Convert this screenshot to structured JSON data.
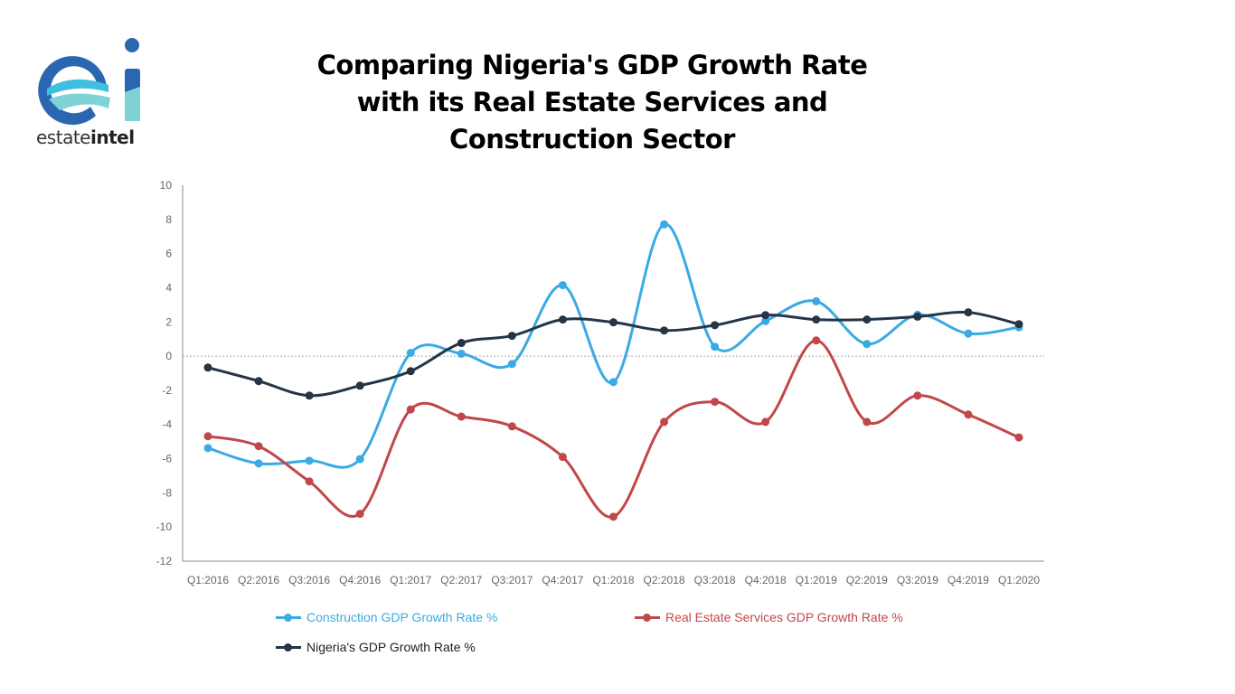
{
  "brand": {
    "logo_text": "estateintel",
    "logo_text_light": "estate",
    "logo_text_bold": "intel",
    "colors": [
      "#2b67b1",
      "#3fbfe0",
      "#7fd3d5"
    ]
  },
  "title_lines": [
    "Comparing Nigeria's GDP Growth Rate",
    "with its Real Estate Services and",
    "Construction Sector"
  ],
  "chart_data": {
    "type": "line",
    "title": "Comparing Nigeria's GDP Growth Rate with its Real Estate Services and Construction Sector",
    "xlabel": "",
    "ylabel": "",
    "categories": [
      "Q1:2016",
      "Q2:2016",
      "Q3:2016",
      "Q4:2016",
      "Q1:2017",
      "Q2:2017",
      "Q3:2017",
      "Q4:2017",
      "Q1:2018",
      "Q2:2018",
      "Q3:2018",
      "Q4:2018",
      "Q1:2019",
      "Q2:2019",
      "Q3:2019",
      "Q4:2019",
      "Q1:2020"
    ],
    "ylim": [
      -12,
      10
    ],
    "yticks": [
      10,
      8,
      6,
      4,
      2,
      0,
      -2,
      -4,
      -6,
      -8,
      -10,
      -12
    ],
    "grid": false,
    "zero_line": "dotted",
    "smooth": true,
    "legend_position": "bottom",
    "series": [
      {
        "name": "Construction GDP Growth Rate %",
        "color": "#3aaae4",
        "values": [
          -5.38,
          -6.28,
          -6.12,
          -6.03,
          0.19,
          0.14,
          -0.46,
          4.15,
          -1.52,
          7.71,
          0.55,
          2.05,
          3.21,
          0.71,
          2.42,
          1.32,
          1.69
        ]
      },
      {
        "name": "Real Estate Services GDP Growth Rate %",
        "color": "#c0474a",
        "values": [
          -4.69,
          -5.27,
          -7.33,
          -9.23,
          -3.12,
          -3.54,
          -4.11,
          -5.9,
          -9.4,
          -3.85,
          -2.67,
          -3.85,
          0.92,
          -3.85,
          -2.31,
          -3.42,
          -4.76
        ]
      },
      {
        "name": "Nigeria's GDP Growth Rate %",
        "color": "#253447",
        "values": [
          -0.67,
          -1.46,
          -2.31,
          -1.73,
          -0.88,
          0.77,
          1.19,
          2.14,
          1.98,
          1.5,
          1.81,
          2.4,
          2.14,
          2.14,
          2.31,
          2.56,
          1.87
        ]
      }
    ]
  }
}
